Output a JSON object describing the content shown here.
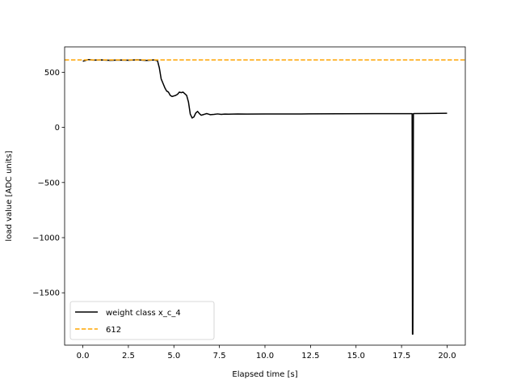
{
  "chart_data": {
    "type": "line",
    "title": "",
    "xlabel": "Elapsed time [s]",
    "ylabel": "load value [ADC units]",
    "xlim": [
      -1.0,
      21.0
    ],
    "ylim": [
      -1975,
      730
    ],
    "grid": false,
    "legend_position": "lower-left",
    "x_ticks": [
      0.0,
      2.5,
      5.0,
      7.5,
      10.0,
      12.5,
      15.0,
      17.5,
      20.0
    ],
    "x_tick_labels": [
      "0.0",
      "2.5",
      "5.0",
      "7.5",
      "10.0",
      "12.5",
      "15.0",
      "17.5",
      "20.0"
    ],
    "y_ticks": [
      500,
      0,
      -500,
      -1000,
      -1500
    ],
    "y_tick_labels": [
      "500",
      "0",
      "−500",
      "−1000",
      "−1500"
    ],
    "series": [
      {
        "name": "weight class x_c_4",
        "color": "#000000",
        "style": "solid",
        "x": [
          0.0,
          0.3,
          0.6,
          1.0,
          1.5,
          2.0,
          2.5,
          3.0,
          3.5,
          3.9,
          4.1,
          4.2,
          4.3,
          4.4,
          4.5,
          4.6,
          4.7,
          4.8,
          4.9,
          5.0,
          5.1,
          5.2,
          5.3,
          5.4,
          5.5,
          5.6,
          5.7,
          5.8,
          5.9,
          6.0,
          6.1,
          6.2,
          6.3,
          6.4,
          6.5,
          6.6,
          6.7,
          6.8,
          6.9,
          7.0,
          7.2,
          7.4,
          7.6,
          7.8,
          8.0,
          8.5,
          9.0,
          10.0,
          12.0,
          14.0,
          16.0,
          17.0,
          18.0,
          18.08,
          18.1,
          18.12,
          18.15,
          18.2,
          19.0,
          20.0
        ],
        "y": [
          600,
          615,
          610,
          612,
          608,
          611,
          609,
          613,
          607,
          612,
          605,
          540,
          440,
          400,
          360,
          330,
          320,
          290,
          280,
          285,
          290,
          300,
          320,
          315,
          320,
          305,
          290,
          230,
          120,
          85,
          95,
          130,
          145,
          125,
          110,
          115,
          120,
          125,
          120,
          115,
          118,
          122,
          118,
          121,
          120,
          122,
          121,
          122,
          122,
          123,
          124,
          124,
          124,
          124,
          -1875,
          -1875,
          124,
          125,
          126,
          128
        ]
      },
      {
        "name": "612",
        "color": "#ffa500",
        "style": "dashed",
        "x": [
          -1.0,
          21.0
        ],
        "y": [
          612,
          612
        ]
      }
    ]
  }
}
